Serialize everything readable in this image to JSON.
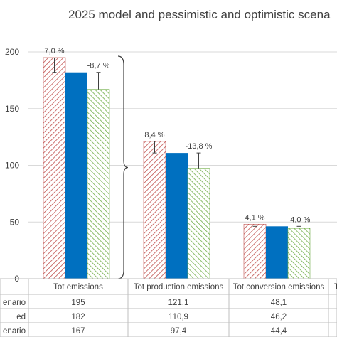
{
  "chart_data": {
    "type": "bar",
    "title": "2025 model and pessimistic and optimistic scena",
    "categories": [
      "Tot emissions",
      "Tot production emissions",
      "Tot conversion emissions"
    ],
    "series": [
      {
        "name": "enario",
        "values": [
          195,
          121.1,
          48.1
        ],
        "value_labels": [
          "195",
          "121,1",
          "48,1"
        ],
        "color": "#c0504d",
        "pattern": "hatch"
      },
      {
        "name": "ed",
        "values": [
          182,
          110.9,
          46.2
        ],
        "value_labels": [
          "182",
          "110,9",
          "46,2"
        ],
        "color": "#0070c0",
        "pattern": "solid"
      },
      {
        "name": "enario",
        "values": [
          167,
          97.4,
          44.4
        ],
        "value_labels": [
          "167",
          "97,4",
          "44,4"
        ],
        "color": "#70ad47",
        "pattern": "hatch"
      }
    ],
    "annotations": {
      "pessimistic_pct": [
        "7,0 %",
        "8,4 %",
        "4,1 %"
      ],
      "optimistic_pct": [
        "-8,7 %",
        "-13,8 %",
        "-4,0 %"
      ]
    },
    "ylim": [
      0,
      200
    ],
    "yticks": [
      0,
      50,
      100,
      150,
      200
    ],
    "grid": true,
    "legend": "data-table",
    "xlabel": "",
    "ylabel": ""
  }
}
